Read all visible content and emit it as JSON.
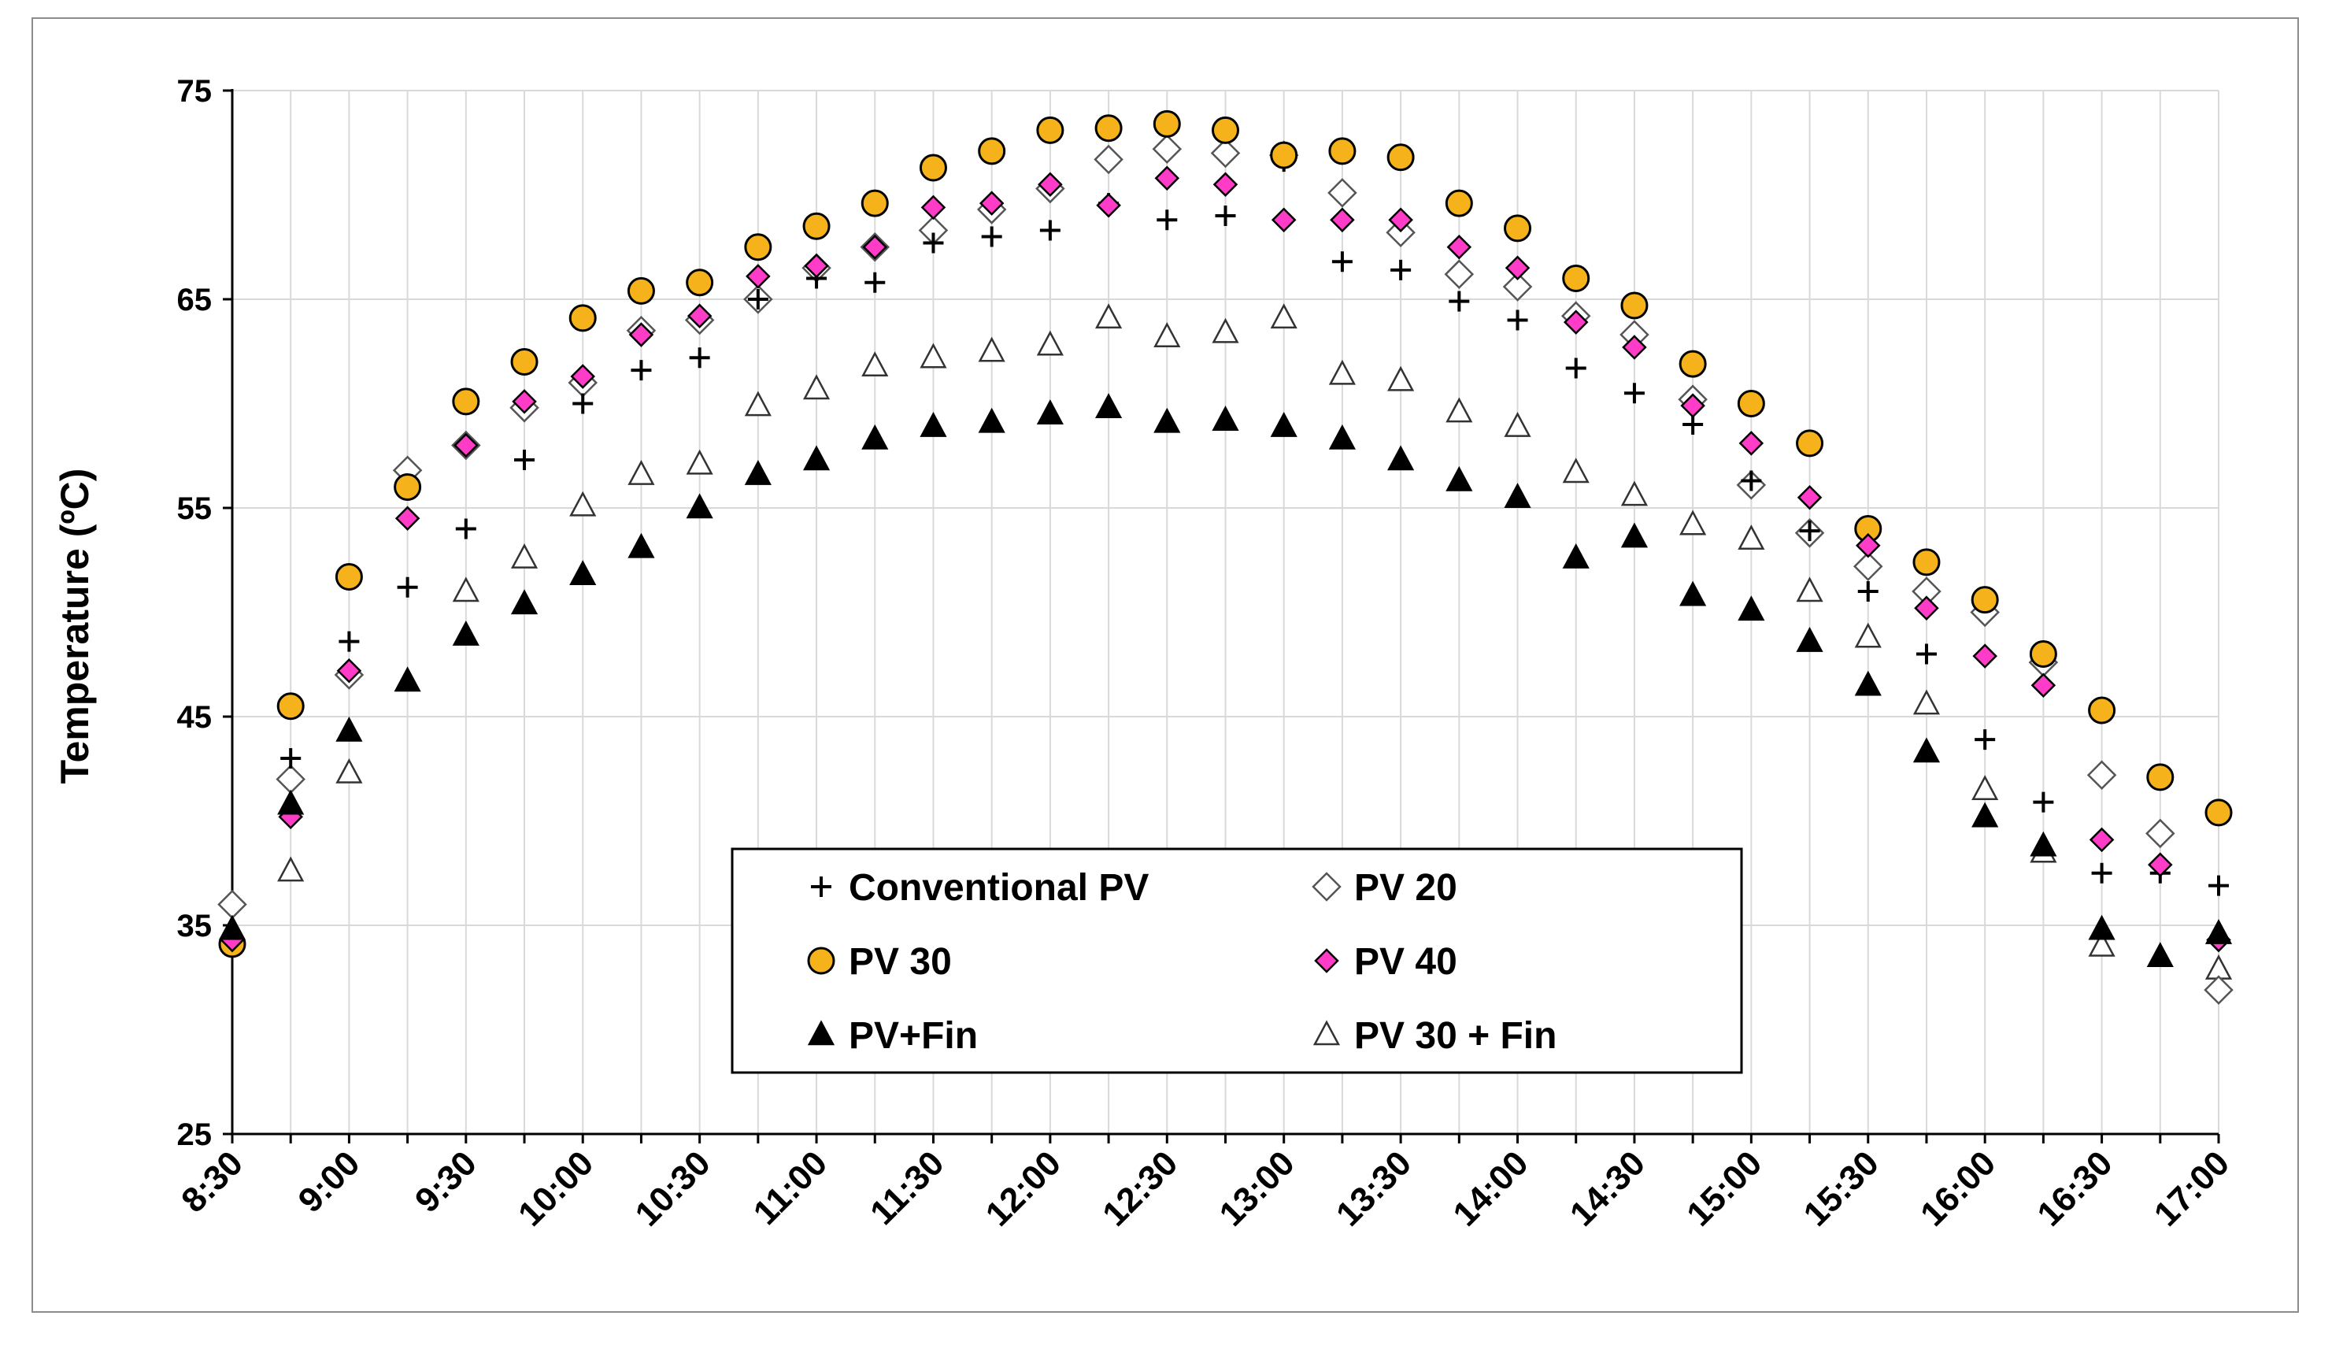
{
  "chart_data": {
    "type": "scatter",
    "title": "",
    "xlabel": "",
    "ylabel": "Temperature (ºC)",
    "ylim": [
      25,
      75
    ],
    "yticks": [
      25,
      35,
      45,
      55,
      65,
      75
    ],
    "ytick_labels": [
      "25",
      "35",
      "45",
      "55",
      "65",
      "75"
    ],
    "x": [
      "8:30",
      "8:45",
      "9:00",
      "9:15",
      "9:30",
      "9:45",
      "10:00",
      "10:15",
      "10:30",
      "10:45",
      "11:00",
      "11:15",
      "11:30",
      "11:45",
      "12:00",
      "12:15",
      "12:30",
      "12:45",
      "13:00",
      "13:15",
      "13:30",
      "13:45",
      "14:00",
      "14:15",
      "14:30",
      "14:45",
      "15:00",
      "15:15",
      "15:30",
      "15:45",
      "16:00",
      "16:15",
      "16:30",
      "16:45",
      "17:00"
    ],
    "xtick_labels": [
      "8:30",
      "9:00",
      "9:30",
      "10:00",
      "10:30",
      "11:00",
      "11:30",
      "12:00",
      "12:30",
      "13:00",
      "13:30",
      "14:00",
      "14:30",
      "15:00",
      "15:30",
      "16:00",
      "16:30",
      "17:00"
    ],
    "grid": true,
    "legend_position": "bottom-center",
    "series": [
      {
        "name": "Conventional PV",
        "marker": "plus",
        "color": "#000000",
        "values": [
          34.5,
          43.0,
          48.6,
          51.2,
          54.0,
          57.3,
          60.0,
          61.6,
          62.2,
          65.0,
          66.0,
          65.8,
          67.7,
          68.0,
          68.3,
          69.6,
          68.8,
          69.0,
          71.6,
          66.8,
          66.4,
          64.9,
          64.0,
          61.7,
          60.5,
          59.0,
          56.3,
          53.9,
          51.0,
          48.0,
          43.9,
          40.9,
          37.5,
          37.5,
          36.9
        ]
      },
      {
        "name": "PV 20",
        "marker": "diamond-open",
        "color": "#ffffff",
        "values": [
          36.0,
          42.0,
          47.0,
          56.8,
          58.0,
          59.8,
          61.0,
          63.5,
          64.0,
          65.0,
          66.5,
          67.5,
          68.3,
          69.3,
          70.3,
          71.7,
          72.2,
          72.0,
          71.9,
          70.1,
          68.2,
          66.2,
          65.6,
          64.2,
          63.3,
          60.2,
          56.1,
          53.8,
          52.2,
          51.0,
          50.0,
          47.6,
          42.2,
          39.4,
          31.9
        ]
      },
      {
        "name": "PV 30",
        "marker": "circle",
        "color": "#f5b21a",
        "values": [
          34.1,
          45.5,
          51.7,
          56.0,
          60.1,
          62.0,
          64.1,
          65.4,
          65.8,
          67.5,
          68.5,
          69.6,
          71.3,
          72.1,
          73.1,
          73.2,
          73.4,
          73.1,
          71.9,
          72.1,
          71.8,
          69.6,
          68.4,
          66.0,
          64.7,
          61.9,
          60.0,
          58.1,
          54.0,
          52.4,
          50.6,
          48.0,
          45.3,
          42.1,
          40.4
        ]
      },
      {
        "name": "PV 40",
        "marker": "diamond",
        "color": "#ff3cc8",
        "values": [
          34.3,
          40.2,
          47.2,
          54.5,
          58.0,
          60.1,
          61.3,
          63.3,
          64.2,
          66.1,
          66.6,
          67.5,
          69.4,
          69.6,
          70.5,
          69.5,
          70.8,
          70.5,
          68.8,
          68.8,
          68.8,
          67.5,
          66.5,
          63.9,
          62.7,
          59.9,
          58.1,
          55.5,
          53.2,
          50.2,
          47.9,
          46.5,
          39.1,
          37.9,
          34.3
        ]
      },
      {
        "name": "PV+Fin",
        "marker": "triangle",
        "color": "#000000",
        "values": [
          34.8,
          40.8,
          44.3,
          46.7,
          48.9,
          50.4,
          51.8,
          53.1,
          55.0,
          56.6,
          57.3,
          58.3,
          58.9,
          59.1,
          59.5,
          59.8,
          59.1,
          59.2,
          58.9,
          58.3,
          57.3,
          56.3,
          55.5,
          52.6,
          53.6,
          50.8,
          50.1,
          48.6,
          46.5,
          43.3,
          40.2,
          38.8,
          34.8,
          33.5,
          34.6
        ]
      },
      {
        "name": "PV 30 + Fin",
        "marker": "triangle-open",
        "color": "#ffffff",
        "values": [
          34.7,
          37.6,
          42.3,
          null,
          51.0,
          52.6,
          55.1,
          56.6,
          57.1,
          59.9,
          60.7,
          61.8,
          62.2,
          62.5,
          62.8,
          64.1,
          63.2,
          63.4,
          64.1,
          61.4,
          61.1,
          59.6,
          58.9,
          56.7,
          55.6,
          54.2,
          53.5,
          51.0,
          48.8,
          45.6,
          41.5,
          38.5,
          34.0,
          null,
          32.9
        ]
      }
    ]
  }
}
